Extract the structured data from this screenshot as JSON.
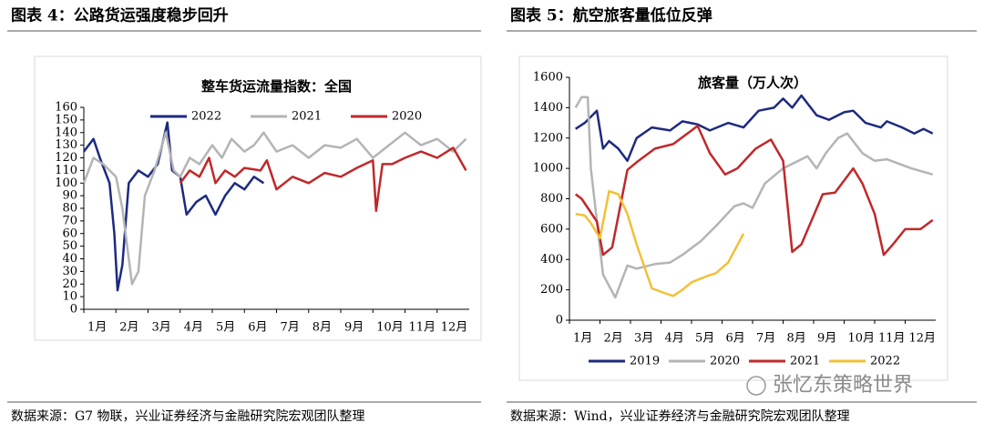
{
  "chart_data": [
    {
      "type": "line",
      "caption": "图表 4：公路货运强度稳步回升",
      "title": "整车货运流量指数：全国",
      "source": "数据来源：G7 物联，兴业证券经济与金融研究院宏观团队整理",
      "xlim": [
        1,
        13
      ],
      "xticks": [
        {
          "value": 1,
          "label": "1月"
        },
        {
          "value": 2,
          "label": "2月"
        },
        {
          "value": 3,
          "label": "3月"
        },
        {
          "value": 4,
          "label": "4月"
        },
        {
          "value": 5,
          "label": "5月"
        },
        {
          "value": 6,
          "label": "6月"
        },
        {
          "value": 7,
          "label": "7月"
        },
        {
          "value": 8,
          "label": "8月"
        },
        {
          "value": 9,
          "label": "9月"
        },
        {
          "value": 10,
          "label": "10月"
        },
        {
          "value": 11,
          "label": "11月"
        },
        {
          "value": 12,
          "label": "12月"
        }
      ],
      "ylim": [
        0,
        160
      ],
      "yticks": [
        0,
        10,
        20,
        30,
        40,
        50,
        60,
        70,
        80,
        90,
        100,
        110,
        120,
        130,
        140,
        150,
        160
      ],
      "legend": "top",
      "series": [
        {
          "name": "2022",
          "color": "#1c2a80",
          "x": [
            1,
            1.3,
            1.5,
            1.8,
            1.95,
            2.05,
            2.2,
            2.4,
            2.7,
            3.0,
            3.3,
            3.6,
            3.75,
            4.0,
            4.2,
            4.5,
            4.8,
            5.1,
            5.4,
            5.7,
            6.0,
            6.3,
            6.6
          ],
          "values": [
            125,
            135,
            120,
            100,
            60,
            15,
            35,
            100,
            110,
            105,
            115,
            148,
            110,
            105,
            75,
            85,
            90,
            75,
            90,
            100,
            95,
            105,
            100
          ]
        },
        {
          "name": "2021",
          "color": "#b4b4b4",
          "x": [
            1,
            1.3,
            1.6,
            2.0,
            2.2,
            2.5,
            2.7,
            2.9,
            3.2,
            3.55,
            3.8,
            4.0,
            4.3,
            4.6,
            5.0,
            5.3,
            5.6,
            6.0,
            6.3,
            6.6,
            7.0,
            7.5,
            8.0,
            8.5,
            9.0,
            9.5,
            10.0,
            10.5,
            11.0,
            11.5,
            12.0,
            12.5,
            12.9
          ],
          "values": [
            100,
            120,
            115,
            105,
            80,
            20,
            30,
            90,
            110,
            140,
            110,
            105,
            120,
            115,
            130,
            120,
            135,
            125,
            130,
            140,
            125,
            130,
            120,
            130,
            128,
            135,
            120,
            130,
            140,
            130,
            135,
            125,
            135
          ]
        },
        {
          "name": "2020",
          "color": "#c0282a",
          "x": [
            4.0,
            4.3,
            4.6,
            4.9,
            5.1,
            5.4,
            5.7,
            6.0,
            6.5,
            6.7,
            7.0,
            7.5,
            8.0,
            8.5,
            9.0,
            9.5,
            10.0,
            10.1,
            10.3,
            10.6,
            11.0,
            11.5,
            12.0,
            12.5,
            12.9
          ],
          "values": [
            100,
            110,
            105,
            120,
            100,
            110,
            105,
            112,
            110,
            118,
            95,
            105,
            100,
            108,
            105,
            112,
            118,
            78,
            115,
            115,
            120,
            125,
            120,
            128,
            110
          ]
        }
      ]
    },
    {
      "type": "line",
      "caption": "图表 5：航空旅客量低位反弹",
      "title": "旅客量（万人次）",
      "source": "数据来源：Wind，兴业证券经济与金融研究院宏观团队整理",
      "xlim": [
        1,
        13
      ],
      "xticks": [
        {
          "value": 1,
          "label": "1月"
        },
        {
          "value": 2,
          "label": "2月"
        },
        {
          "value": 3,
          "label": "3月"
        },
        {
          "value": 4,
          "label": "4月"
        },
        {
          "value": 5,
          "label": "5月"
        },
        {
          "value": 6,
          "label": "6月"
        },
        {
          "value": 7,
          "label": "7月"
        },
        {
          "value": 8,
          "label": "8月"
        },
        {
          "value": 9,
          "label": "9月"
        },
        {
          "value": 10,
          "label": "10月"
        },
        {
          "value": 11,
          "label": "11月"
        },
        {
          "value": 12,
          "label": "12月"
        }
      ],
      "ylim": [
        0,
        1600
      ],
      "yticks": [
        0,
        200,
        400,
        600,
        800,
        1000,
        1200,
        1400,
        1600
      ],
      "legend": "bottom",
      "series": [
        {
          "name": "2019",
          "color": "#1c2a80",
          "x": [
            1.2,
            1.5,
            1.9,
            2.1,
            2.3,
            2.6,
            2.9,
            3.2,
            3.7,
            4.3,
            4.7,
            5.2,
            5.6,
            6.2,
            6.7,
            7.2,
            7.7,
            8.0,
            8.3,
            8.6,
            9.1,
            9.5,
            10.0,
            10.3,
            10.7,
            11.2,
            11.4,
            11.9,
            12.3,
            12.6,
            12.9
          ],
          "values": [
            1260,
            1300,
            1380,
            1130,
            1180,
            1130,
            1050,
            1200,
            1270,
            1250,
            1310,
            1290,
            1250,
            1300,
            1270,
            1380,
            1400,
            1460,
            1400,
            1480,
            1350,
            1320,
            1370,
            1380,
            1300,
            1270,
            1310,
            1270,
            1230,
            1260,
            1230
          ]
        },
        {
          "name": "2020",
          "color": "#b4b4b4",
          "x": [
            1.2,
            1.4,
            1.6,
            1.7,
            2.1,
            2.5,
            2.9,
            3.2,
            3.8,
            4.3,
            4.7,
            5.3,
            5.8,
            6.4,
            6.7,
            7.0,
            7.4,
            8.0,
            8.5,
            8.8,
            9.1,
            9.4,
            9.8,
            10.1,
            10.6,
            11.0,
            11.4,
            12.2,
            12.9
          ],
          "values": [
            1400,
            1470,
            1470,
            1000,
            300,
            150,
            360,
            340,
            370,
            380,
            430,
            520,
            620,
            750,
            770,
            740,
            900,
            1000,
            1050,
            1080,
            1000,
            1100,
            1200,
            1230,
            1100,
            1050,
            1060,
            1000,
            960
          ]
        },
        {
          "name": "2021",
          "color": "#c0282a",
          "x": [
            1.2,
            1.4,
            1.9,
            2.1,
            2.4,
            2.9,
            3.2,
            3.8,
            4.4,
            5.2,
            5.6,
            6.1,
            6.5,
            7.1,
            7.6,
            8.0,
            8.3,
            8.6,
            9.3,
            9.7,
            10.3,
            10.6,
            11.0,
            11.3,
            11.6,
            12.0,
            12.5,
            12.9
          ],
          "values": [
            830,
            800,
            650,
            430,
            480,
            990,
            1040,
            1130,
            1160,
            1280,
            1100,
            960,
            1000,
            1130,
            1190,
            1050,
            450,
            500,
            830,
            840,
            1000,
            900,
            700,
            430,
            500,
            600,
            600,
            660
          ]
        },
        {
          "name": "2022",
          "color": "#f2c037",
          "x": [
            1.2,
            1.5,
            1.7,
            2.0,
            2.3,
            2.6,
            2.9,
            3.2,
            3.7,
            4.1,
            4.4,
            4.7,
            5.0,
            5.5,
            5.8,
            6.2,
            6.7
          ],
          "values": [
            700,
            690,
            640,
            540,
            850,
            830,
            700,
            500,
            210,
            180,
            160,
            200,
            250,
            290,
            310,
            380,
            570
          ]
        }
      ]
    }
  ],
  "watermark": "张忆东策略世界"
}
